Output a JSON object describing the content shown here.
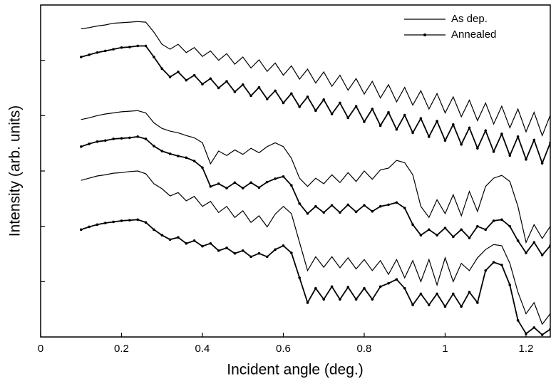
{
  "chart_data": {
    "type": "line",
    "x_label": "Incident angle (deg.)",
    "y_label": "Intensity (arb. units)",
    "x": [
      0.1,
      0.12,
      0.14,
      0.16,
      0.18,
      0.2,
      0.22,
      0.24,
      0.26,
      0.28,
      0.3,
      0.32,
      0.34,
      0.36,
      0.38,
      0.4,
      0.42,
      0.44,
      0.46,
      0.48,
      0.5,
      0.52,
      0.54,
      0.56,
      0.58,
      0.6,
      0.62,
      0.64,
      0.66,
      0.68,
      0.7,
      0.72,
      0.74,
      0.76,
      0.78,
      0.8,
      0.82,
      0.84,
      0.86,
      0.88,
      0.9,
      0.92,
      0.94,
      0.96,
      0.98,
      1.0,
      1.02,
      1.04,
      1.06,
      1.08,
      1.1,
      1.12,
      1.14,
      1.16,
      1.18,
      1.2,
      1.22,
      1.24,
      1.26
    ],
    "series": [
      {
        "name": "As dep.",
        "color": "#000000",
        "marker": false,
        "values": [
          5.57,
          5.59,
          5.62,
          5.64,
          5.67,
          5.68,
          5.69,
          5.7,
          5.69,
          5.51,
          5.29,
          5.2,
          5.29,
          5.14,
          5.23,
          5.07,
          5.17,
          5.0,
          5.12,
          4.93,
          5.06,
          4.86,
          5.01,
          4.8,
          4.95,
          4.73,
          4.9,
          4.66,
          4.84,
          4.59,
          4.79,
          4.53,
          4.73,
          4.46,
          4.67,
          4.39,
          4.62,
          4.32,
          4.56,
          4.25,
          4.51,
          4.19,
          4.45,
          4.12,
          4.4,
          4.05,
          4.34,
          3.98,
          4.28,
          3.91,
          4.23,
          3.85,
          4.17,
          3.78,
          4.12,
          3.71,
          4.06,
          3.64,
          4.01
        ]
      },
      {
        "name": "Annealed",
        "color": "#000000",
        "marker": true,
        "values": [
          5.06,
          5.1,
          5.14,
          5.17,
          5.2,
          5.23,
          5.24,
          5.26,
          5.26,
          5.06,
          4.85,
          4.7,
          4.79,
          4.64,
          4.73,
          4.57,
          4.67,
          4.5,
          4.62,
          4.43,
          4.56,
          4.36,
          4.51,
          4.3,
          4.45,
          4.23,
          4.4,
          4.16,
          4.34,
          4.09,
          4.29,
          4.03,
          4.23,
          3.96,
          4.17,
          3.89,
          4.12,
          3.82,
          4.06,
          3.75,
          4.01,
          3.69,
          3.95,
          3.62,
          3.9,
          3.55,
          3.84,
          3.48,
          3.78,
          3.41,
          3.73,
          3.35,
          3.67,
          3.28,
          3.62,
          3.21,
          3.56,
          3.14,
          3.51
        ]
      },
      {
        "color": "#000000",
        "marker": false,
        "values": [
          3.93,
          3.96,
          4.0,
          4.03,
          4.05,
          4.07,
          4.08,
          4.09,
          4.05,
          3.87,
          3.77,
          3.72,
          3.69,
          3.64,
          3.6,
          3.51,
          3.13,
          3.36,
          3.28,
          3.38,
          3.3,
          3.41,
          3.33,
          3.44,
          3.51,
          3.44,
          3.23,
          2.87,
          2.72,
          2.87,
          2.77,
          2.93,
          2.79,
          2.97,
          2.81,
          3.0,
          2.85,
          3.02,
          3.05,
          3.19,
          3.15,
          2.93,
          2.36,
          2.16,
          2.48,
          2.23,
          2.57,
          2.19,
          2.63,
          2.27,
          2.72,
          2.87,
          2.92,
          2.81,
          2.36,
          1.71,
          2.03,
          1.78,
          2.0
        ]
      },
      {
        "color": "#000000",
        "marker": true,
        "values": [
          3.44,
          3.49,
          3.53,
          3.55,
          3.58,
          3.59,
          3.6,
          3.62,
          3.58,
          3.45,
          3.36,
          3.31,
          3.27,
          3.24,
          3.18,
          3.06,
          2.72,
          2.77,
          2.69,
          2.79,
          2.69,
          2.79,
          2.7,
          2.8,
          2.86,
          2.9,
          2.74,
          2.41,
          2.23,
          2.36,
          2.25,
          2.38,
          2.25,
          2.39,
          2.26,
          2.38,
          2.27,
          2.36,
          2.39,
          2.43,
          2.33,
          2.03,
          1.84,
          1.94,
          1.84,
          1.97,
          1.81,
          1.94,
          1.79,
          2.0,
          1.94,
          2.1,
          2.12,
          2.0,
          1.74,
          1.52,
          1.71,
          1.48,
          1.65
        ]
      },
      {
        "color": "#000000",
        "marker": false,
        "values": [
          2.83,
          2.87,
          2.91,
          2.93,
          2.96,
          2.97,
          2.99,
          3.0,
          2.95,
          2.77,
          2.68,
          2.55,
          2.61,
          2.46,
          2.54,
          2.36,
          2.45,
          2.25,
          2.36,
          2.16,
          2.28,
          2.07,
          2.19,
          1.99,
          2.22,
          2.36,
          2.23,
          1.71,
          1.2,
          1.45,
          1.26,
          1.45,
          1.25,
          1.43,
          1.23,
          1.4,
          1.2,
          1.38,
          1.13,
          1.4,
          1.07,
          1.38,
          1.0,
          1.4,
          0.94,
          1.43,
          1.0,
          1.33,
          1.2,
          1.43,
          1.58,
          1.67,
          1.65,
          1.33,
          0.81,
          0.42,
          0.62,
          0.23,
          0.42
        ]
      },
      {
        "color": "#000000",
        "marker": true,
        "values": [
          1.94,
          1.99,
          2.03,
          2.06,
          2.08,
          2.1,
          2.11,
          2.12,
          2.07,
          1.94,
          1.84,
          1.76,
          1.8,
          1.69,
          1.74,
          1.64,
          1.69,
          1.56,
          1.61,
          1.51,
          1.56,
          1.45,
          1.51,
          1.45,
          1.58,
          1.65,
          1.52,
          1.07,
          0.62,
          0.88,
          0.68,
          0.91,
          0.68,
          0.9,
          0.68,
          0.88,
          0.68,
          0.91,
          0.97,
          1.04,
          0.88,
          0.58,
          0.78,
          0.58,
          0.78,
          0.55,
          0.78,
          0.55,
          0.81,
          0.62,
          1.2,
          1.35,
          1.3,
          0.94,
          0.3,
          0.06,
          0.17,
          0.04,
          0.14
        ]
      }
    ],
    "xlim": [
      0,
      1.26
    ],
    "xticks": [
      0,
      0.2,
      0.4,
      0.6,
      0.8,
      1,
      1.2
    ],
    "ylim": [
      0,
      6
    ],
    "yticks": [
      1,
      2,
      3,
      4,
      5
    ],
    "legend": "upper right",
    "grid": false
  }
}
